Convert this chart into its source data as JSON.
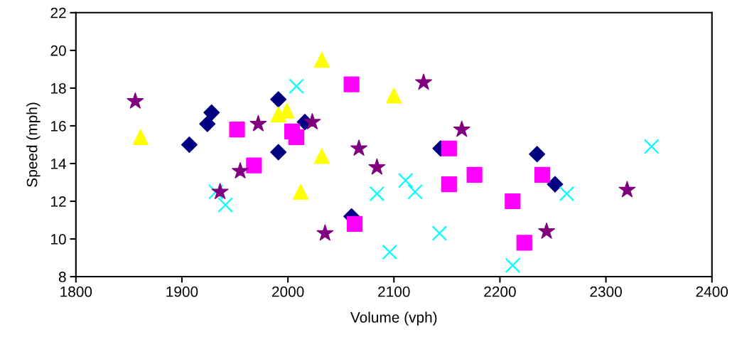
{
  "chart_data": {
    "type": "scatter",
    "xlabel": "Volume (vph)",
    "ylabel": "Speed (mph)",
    "xlim": [
      1800,
      2400
    ],
    "xticks": [
      1800,
      1900,
      2000,
      2100,
      2200,
      2300,
      2400
    ],
    "ylim": [
      8,
      22
    ],
    "yticks": [
      8,
      10,
      12,
      14,
      16,
      18,
      20,
      22
    ],
    "grid": false,
    "legend": false,
    "series": [
      {
        "color": "#000080",
        "marker": "diamond",
        "x": [
          1907,
          1924,
          1928,
          1991,
          1991,
          2016,
          2060,
          2144,
          2235,
          2243,
          2247,
          2252
        ],
        "values": [
          15.0,
          16.1,
          16.7,
          17.4,
          14.6,
          16.2,
          11.2,
          14.8,
          14.5,
          null,
          null,
          12.9
        ]
      },
      {
        "color": "#ff00ff",
        "marker": "square",
        "x": [
          1952,
          1968,
          2004,
          2008,
          2060,
          2063,
          2152,
          2152,
          2176,
          2212,
          2223,
          2240
        ],
        "values": [
          15.8,
          13.9,
          15.7,
          15.4,
          18.2,
          10.8,
          14.8,
          12.9,
          13.4,
          12.0,
          9.8,
          13.4
        ]
      },
      {
        "color": "#ffff00",
        "marker": "triangle",
        "x": [
          1861,
          1991,
          1999,
          2012,
          2032,
          2032,
          2100
        ],
        "values": [
          15.4,
          16.6,
          16.8,
          12.5,
          19.5,
          14.4,
          17.6
        ]
      },
      {
        "color": "#00ffff",
        "marker": "cross",
        "x": [
          2008,
          1932,
          1941,
          2084,
          2111,
          2120,
          2096,
          2143,
          2212,
          2263,
          2343
        ],
        "values": [
          18.1,
          12.5,
          11.8,
          12.4,
          13.1,
          12.5,
          9.3,
          10.3,
          8.6,
          12.4,
          14.9
        ]
      },
      {
        "color": "#800080",
        "marker": "star",
        "x": [
          1856,
          1936,
          1955,
          1972,
          2023,
          2035,
          2067,
          2084,
          2128,
          2164,
          2244,
          2320
        ],
        "values": [
          17.3,
          12.5,
          13.6,
          16.1,
          16.2,
          10.3,
          14.8,
          13.8,
          18.3,
          15.8,
          10.4,
          12.6
        ]
      }
    ]
  }
}
